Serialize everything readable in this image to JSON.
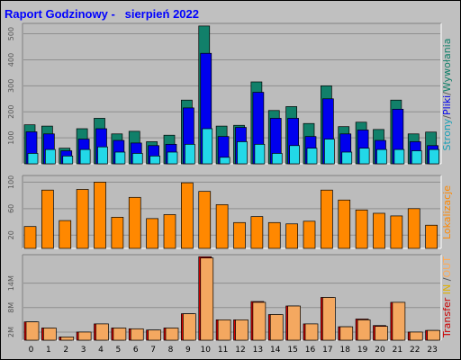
{
  "window": {
    "title": "Raport Godzinowy -   sierpień 2022"
  },
  "colors": {
    "background": "#c0c0c0",
    "plot_bg": "#bcbcbc",
    "grid": "#8f8f8f",
    "visits": "#11806a",
    "pages": "#0000ee",
    "files": "#22d8e8",
    "hosts": "#ff8800",
    "transfer_in": "#dd0000",
    "transfer_out": "#f4a860"
  },
  "side_labels": {
    "top": [
      {
        "text": "Strony",
        "color": "#17a0b8"
      },
      {
        "text": "/",
        "color": "#555555"
      },
      {
        "text": "Pliki",
        "color": "#0000ee"
      },
      {
        "text": "/",
        "color": "#555555"
      },
      {
        "text": "Wywołania",
        "color": "#11806a"
      }
    ],
    "middle": [
      {
        "text": "Lokalizacje",
        "color": "#ff8800"
      }
    ],
    "bottom": [
      {
        "text": "Transfer",
        "color": "#cc0000"
      },
      {
        "text": " IN ",
        "color": "#e0b000"
      },
      {
        "text": "/",
        "color": "#555555"
      },
      {
        "text": "OUT",
        "color": "#ffaa55"
      }
    ]
  },
  "chart_data": [
    {
      "type": "bar",
      "categories": [
        "0",
        "1",
        "2",
        "3",
        "4",
        "5",
        "6",
        "7",
        "8",
        "9",
        "10",
        "11",
        "12",
        "13",
        "14",
        "15",
        "16",
        "17",
        "18",
        "19",
        "20",
        "21",
        "22",
        "23"
      ],
      "ylim": [
        0,
        540
      ],
      "yticks": [
        "100",
        "200",
        "300",
        "400",
        "500"
      ],
      "ytick_values": [
        100,
        200,
        300,
        400,
        500
      ],
      "grid": true,
      "series": [
        {
          "values": [
            150,
            145,
            60,
            135,
            175,
            115,
            125,
            85,
            110,
            245,
            530,
            145,
            148,
            315,
            205,
            220,
            155,
            300,
            143,
            160,
            132,
            245,
            115,
            122
          ]
        },
        {
          "values": [
            123,
            115,
            50,
            95,
            135,
            90,
            80,
            70,
            75,
            215,
            425,
            105,
            140,
            275,
            175,
            175,
            105,
            250,
            115,
            130,
            90,
            210,
            85,
            70
          ]
        },
        {
          "values": [
            40,
            55,
            30,
            55,
            65,
            45,
            40,
            30,
            45,
            75,
            135,
            25,
            85,
            75,
            40,
            70,
            60,
            95,
            45,
            60,
            55,
            55,
            50,
            55
          ]
        }
      ]
    },
    {
      "type": "bar",
      "categories": [
        "0",
        "1",
        "2",
        "3",
        "4",
        "5",
        "6",
        "7",
        "8",
        "9",
        "10",
        "11",
        "12",
        "13",
        "14",
        "15",
        "16",
        "17",
        "18",
        "19",
        "20",
        "21",
        "22",
        "23"
      ],
      "ylim": [
        0,
        110
      ],
      "yticks": [
        "20",
        "60",
        "100"
      ],
      "ytick_values": [
        20,
        60,
        100
      ],
      "grid": true,
      "series": [
        {
          "values": [
            33,
            88,
            42,
            89,
            100,
            47,
            77,
            45,
            51,
            99,
            86,
            66,
            39,
            48,
            39,
            37,
            41,
            88,
            73,
            58,
            53,
            49,
            60,
            35
          ]
        }
      ]
    },
    {
      "type": "bar",
      "categories": [
        "0",
        "1",
        "2",
        "3",
        "4",
        "5",
        "6",
        "7",
        "8",
        "9",
        "10",
        "11",
        "12",
        "13",
        "14",
        "15",
        "16",
        "17",
        "18",
        "19",
        "20",
        "21",
        "22",
        "23"
      ],
      "ylim": [
        0,
        21
      ],
      "yticks": [
        "2M",
        "8M",
        "14M"
      ],
      "ytick_values": [
        2,
        8,
        14
      ],
      "grid": true,
      "series": [
        {
          "values": [
            4.5,
            3.0,
            0.8,
            2.0,
            4.0,
            3.0,
            2.8,
            2.5,
            3.0,
            6.5,
            20.5,
            5.0,
            5.0,
            9.5,
            6.3,
            8.4,
            4.0,
            10.5,
            3.3,
            5.2,
            3.6,
            9.3,
            2.0,
            2.4
          ]
        },
        {
          "values": [
            4.5,
            3.0,
            0.8,
            2.0,
            4.0,
            3.0,
            2.8,
            2.5,
            3.0,
            6.5,
            20.2,
            5.0,
            5.0,
            9.3,
            6.3,
            8.4,
            4.0,
            10.5,
            3.3,
            5.0,
            3.4,
            9.3,
            2.0,
            2.4
          ]
        }
      ]
    }
  ]
}
